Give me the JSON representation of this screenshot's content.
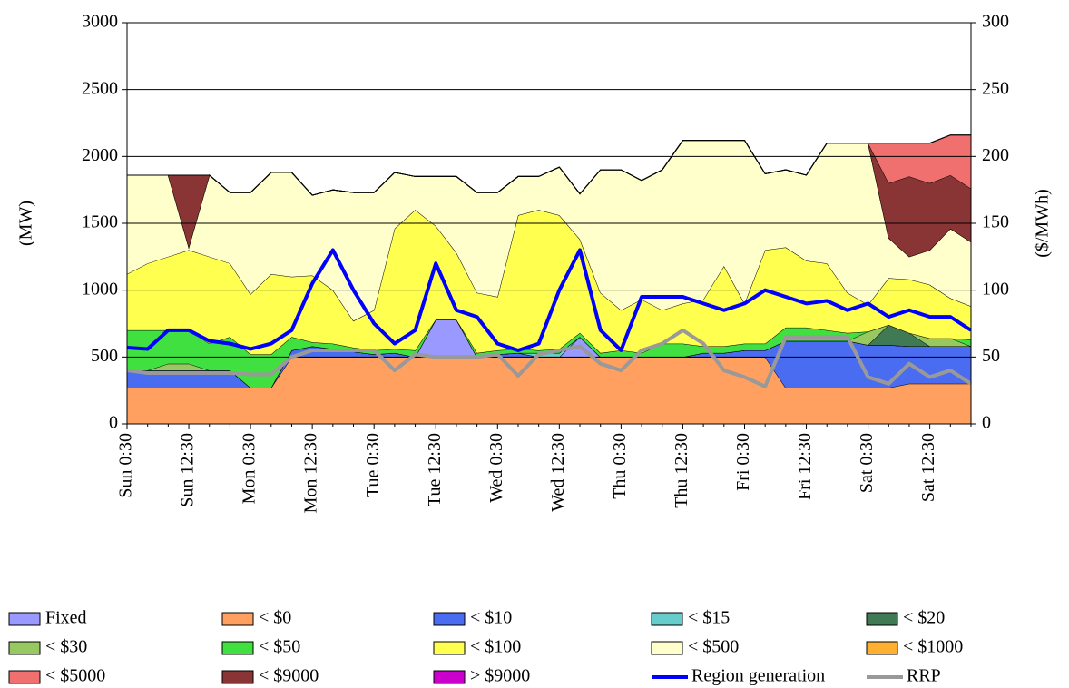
{
  "chart_data": {
    "type": "area",
    "y_label": "(MW)",
    "y2_label": "($/MWh)",
    "categories": [
      "Sun 0:30",
      null,
      null,
      "Sun 12:30",
      null,
      null,
      "Mon 0:30",
      null,
      null,
      "Mon 12:30",
      null,
      null,
      "Tue 0:30",
      null,
      null,
      "Tue 12:30",
      null,
      null,
      "Wed 0:30",
      null,
      null,
      "Wed 12:30",
      null,
      null,
      "Thu 0:30",
      null,
      null,
      "Thu 12:30",
      null,
      null,
      "Fri 0:30",
      null,
      null,
      "Fri 12:30",
      null,
      null,
      "Sat 0:30",
      null,
      null,
      "Sat 12:30",
      null,
      null
    ],
    "ylim": [
      0,
      3000
    ],
    "yticks": [
      0,
      500,
      1000,
      1500,
      2000,
      2500,
      3000
    ],
    "y2lim": [
      0,
      300
    ],
    "y2ticks": [
      0,
      50,
      100,
      150,
      200,
      250,
      300
    ],
    "grid": true,
    "series": [
      {
        "name": "Fixed",
        "type": "area",
        "color": "#9999ff",
        "values": [
          0,
          0,
          0,
          0,
          0,
          0,
          0,
          0,
          0,
          0,
          0,
          0,
          0,
          0,
          0,
          280,
          280,
          0,
          0,
          0,
          0,
          0,
          150,
          0,
          0,
          0,
          0,
          0,
          0,
          0,
          0,
          0,
          0,
          0,
          0,
          0,
          0,
          0,
          0,
          0,
          0,
          0
        ]
      },
      {
        "name": "< $0",
        "type": "area",
        "color": "#ffa060",
        "values": [
          270,
          270,
          270,
          270,
          270,
          270,
          270,
          270,
          500,
          500,
          500,
          500,
          500,
          500,
          500,
          500,
          500,
          500,
          500,
          500,
          500,
          500,
          500,
          500,
          500,
          500,
          500,
          500,
          500,
          500,
          500,
          500,
          270,
          270,
          270,
          270,
          270,
          270,
          300,
          300,
          300,
          300
        ]
      },
      {
        "name": "< $10",
        "type": "area",
        "color": "#4a6cf0",
        "values": [
          130,
          130,
          130,
          130,
          130,
          130,
          0,
          0,
          50,
          80,
          60,
          40,
          20,
          30,
          0,
          0,
          0,
          0,
          20,
          30,
          0,
          0,
          0,
          0,
          0,
          0,
          0,
          0,
          30,
          30,
          50,
          50,
          350,
          350,
          350,
          350,
          320,
          320,
          280,
          280,
          280,
          280
        ]
      },
      {
        "name": "< $15",
        "type": "area",
        "color": "#66cccc",
        "values": [
          0,
          0,
          0,
          0,
          0,
          0,
          0,
          0,
          0,
          0,
          0,
          0,
          0,
          0,
          0,
          0,
          0,
          0,
          0,
          0,
          30,
          30,
          0,
          0,
          0,
          0,
          0,
          0,
          0,
          0,
          0,
          0,
          0,
          0,
          0,
          0,
          0,
          0,
          0,
          0,
          0,
          0
        ]
      },
      {
        "name": "< $20",
        "type": "area",
        "color": "#3f7a55",
        "values": [
          0,
          0,
          0,
          0,
          0,
          0,
          0,
          0,
          0,
          0,
          0,
          0,
          0,
          0,
          0,
          0,
          0,
          0,
          0,
          0,
          0,
          0,
          0,
          0,
          0,
          0,
          0,
          0,
          0,
          0,
          0,
          0,
          0,
          0,
          0,
          0,
          0,
          150,
          100,
          0,
          0,
          0
        ]
      },
      {
        "name": "< $30",
        "type": "area",
        "color": "#98c860",
        "values": [
          0,
          0,
          50,
          50,
          0,
          0,
          0,
          0,
          0,
          0,
          0,
          0,
          0,
          0,
          0,
          0,
          0,
          0,
          0,
          0,
          0,
          0,
          0,
          0,
          0,
          0,
          0,
          0,
          0,
          0,
          0,
          0,
          0,
          0,
          0,
          0,
          100,
          0,
          0,
          60,
          60,
          0
        ]
      },
      {
        "name": "< $50",
        "type": "area",
        "color": "#40e040",
        "values": [
          300,
          300,
          250,
          250,
          200,
          250,
          250,
          250,
          100,
          30,
          40,
          30,
          30,
          30,
          50,
          0,
          0,
          30,
          30,
          30,
          20,
          30,
          30,
          30,
          50,
          30,
          100,
          100,
          50,
          50,
          50,
          50,
          100,
          100,
          80,
          60,
          0,
          0,
          0,
          0,
          0,
          50
        ]
      },
      {
        "name": "< $100",
        "type": "area",
        "color": "#ffff50",
        "values": [
          420,
          500,
          550,
          600,
          650,
          550,
          450,
          600,
          450,
          500,
          400,
          200,
          300,
          900,
          1050,
          700,
          500,
          450,
          400,
          1000,
          1050,
          1000,
          700,
          450,
          300,
          400,
          250,
          300,
          350,
          600,
          300,
          700,
          600,
          500,
          500,
          300,
          200,
          350,
          400,
          400,
          300,
          250
        ]
      },
      {
        "name": "< $500",
        "type": "area",
        "color": "#ffffcc",
        "values": [
          740,
          660,
          610,
          20,
          610,
          530,
          760,
          760,
          780,
          600,
          750,
          960,
          880,
          420,
          250,
          370,
          570,
          750,
          780,
          290,
          250,
          360,
          340,
          920,
          1050,
          890,
          1050,
          1220,
          1190,
          940,
          1220,
          570,
          580,
          640,
          900,
          1120,
          1210,
          300,
          170,
          260,
          520,
          480
        ]
      },
      {
        "name": "< $1000",
        "type": "area",
        "color": "#ffb030",
        "values": [
          0,
          0,
          0,
          0,
          0,
          0,
          0,
          0,
          0,
          0,
          0,
          0,
          0,
          0,
          0,
          0,
          0,
          0,
          0,
          0,
          0,
          0,
          0,
          0,
          0,
          0,
          0,
          0,
          0,
          0,
          0,
          0,
          0,
          0,
          0,
          0,
          0,
          0,
          0,
          0,
          0,
          0
        ]
      },
      {
        "name": "< $5000",
        "type": "area",
        "color": "#f07070",
        "values": [
          0,
          0,
          0,
          0,
          0,
          0,
          0,
          0,
          0,
          0,
          0,
          0,
          0,
          0,
          0,
          0,
          0,
          0,
          0,
          0,
          0,
          0,
          0,
          0,
          0,
          0,
          0,
          0,
          0,
          0,
          0,
          0,
          0,
          0,
          0,
          0,
          0,
          300,
          250,
          300,
          300,
          400
        ]
      },
      {
        "name": "< $9000",
        "type": "area",
        "color": "#8a3535",
        "values": [
          0,
          0,
          0,
          540,
          0,
          0,
          0,
          0,
          0,
          0,
          0,
          0,
          0,
          0,
          0,
          0,
          0,
          0,
          0,
          0,
          0,
          0,
          0,
          0,
          0,
          0,
          0,
          0,
          0,
          0,
          0,
          0,
          0,
          0,
          0,
          0,
          0,
          410,
          600,
          500,
          400,
          400
        ]
      },
      {
        "name": "> $9000",
        "type": "area",
        "color": "#cc00cc",
        "values": [
          0,
          0,
          0,
          0,
          0,
          0,
          0,
          0,
          0,
          0,
          0,
          0,
          0,
          0,
          0,
          0,
          0,
          0,
          0,
          0,
          0,
          0,
          0,
          0,
          0,
          0,
          0,
          0,
          0,
          0,
          0,
          0,
          0,
          0,
          0,
          0,
          0,
          0,
          0,
          0,
          0,
          0
        ]
      },
      {
        "name": "Region generation",
        "type": "line",
        "color": "#0000ff",
        "values": [
          570,
          560,
          700,
          700,
          620,
          600,
          560,
          600,
          700,
          1050,
          1300,
          1000,
          750,
          600,
          700,
          1200,
          850,
          800,
          600,
          550,
          600,
          1000,
          1300,
          700,
          550,
          950,
          950,
          950,
          900,
          850,
          900,
          1000,
          950,
          900,
          920,
          850,
          900,
          800,
          850,
          800,
          800,
          700
        ]
      },
      {
        "name": "RRP",
        "type": "line",
        "axis": "y2",
        "color": "#999999",
        "values": [
          40,
          38,
          38,
          38,
          38,
          38,
          37,
          37,
          50,
          55,
          55,
          55,
          55,
          40,
          52,
          50,
          50,
          50,
          52,
          36,
          52,
          55,
          58,
          45,
          40,
          55,
          60,
          70,
          60,
          40,
          35,
          28,
          65,
          65,
          65,
          65,
          35,
          30,
          45,
          35,
          40,
          30
        ]
      }
    ]
  }
}
